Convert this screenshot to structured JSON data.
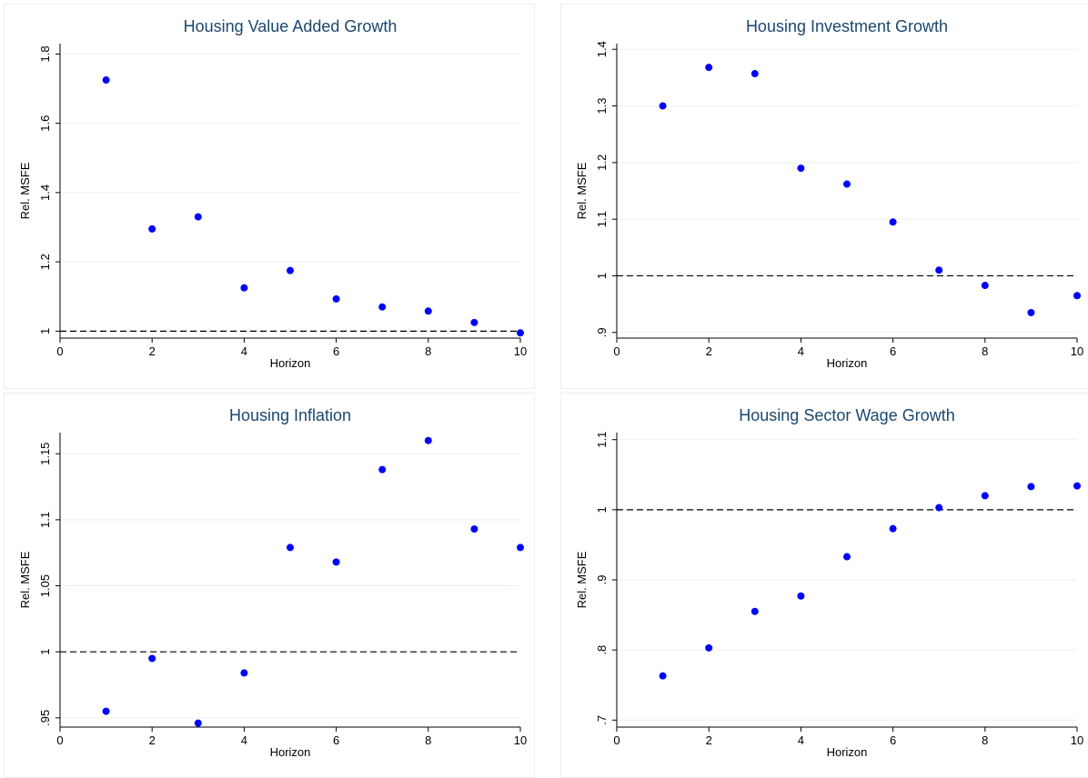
{
  "figure": {
    "background_color": "#ffffff",
    "title_color": "#1a476f",
    "marker_color": "#0000ff",
    "grid_color": "#eaf2f3"
  },
  "chart_data": [
    {
      "type": "scatter",
      "title": "Housing Value Added Growth",
      "xlabel": "Horizon",
      "ylabel": "Rel. MSFE",
      "xlim": [
        0,
        10
      ],
      "ylim": [
        0.98,
        1.83
      ],
      "xticks": [
        "0",
        "2",
        "4",
        "6",
        "8",
        "10"
      ],
      "yticks": [
        "1",
        "1.2",
        "1.4",
        "1.6",
        "1.8"
      ],
      "grid": true,
      "reference_line": 1,
      "x": [
        1,
        2,
        3,
        4,
        5,
        6,
        7,
        8,
        9,
        10
      ],
      "y": [
        1.725,
        1.295,
        1.33,
        1.125,
        1.175,
        1.093,
        1.07,
        1.058,
        1.025,
        0.995
      ]
    },
    {
      "type": "scatter",
      "title": "Housing Investment Growth",
      "xlabel": "Horizon",
      "ylabel": "Rel. MSFE",
      "xlim": [
        0,
        10
      ],
      "ylim": [
        0.89,
        1.41
      ],
      "xticks": [
        "0",
        "2",
        "4",
        "6",
        "8",
        "10"
      ],
      "yticks": [
        ".9",
        "1",
        "1.1",
        "1.2",
        "1.3",
        "1.4"
      ],
      "grid": true,
      "reference_line": 1,
      "x": [
        1,
        2,
        3,
        4,
        5,
        6,
        7,
        8,
        9,
        10
      ],
      "y": [
        1.3,
        1.368,
        1.357,
        1.19,
        1.162,
        1.095,
        1.01,
        0.983,
        0.935,
        0.965
      ]
    },
    {
      "type": "scatter",
      "title": "Housing Inflation",
      "xlabel": "Horizon",
      "ylabel": "Rel. MSFE",
      "xlim": [
        0,
        10
      ],
      "ylim": [
        0.943,
        1.166
      ],
      "xticks": [
        "0",
        "2",
        "4",
        "6",
        "8",
        "10"
      ],
      "yticks": [
        ".95",
        "1",
        "1.05",
        "1.1",
        "1.15"
      ],
      "grid": true,
      "reference_line": 1,
      "x": [
        1,
        2,
        3,
        4,
        5,
        6,
        7,
        8,
        9,
        10
      ],
      "y": [
        0.955,
        0.995,
        0.946,
        0.984,
        1.079,
        1.068,
        1.138,
        1.16,
        1.093,
        1.079
      ]
    },
    {
      "type": "scatter",
      "title": "Housing Sector Wage Growth",
      "xlabel": "Horizon",
      "ylabel": "Rel. MSFE",
      "xlim": [
        0,
        10
      ],
      "ylim": [
        0.69,
        1.11
      ],
      "xticks": [
        "0",
        "2",
        "4",
        "6",
        "8",
        "10"
      ],
      "yticks": [
        ".7",
        ".8",
        ".9",
        "1",
        "1.1"
      ],
      "grid": true,
      "reference_line": 1,
      "x": [
        1,
        2,
        3,
        4,
        5,
        6,
        7,
        8,
        9,
        10
      ],
      "y": [
        0.763,
        0.803,
        0.855,
        0.877,
        0.933,
        0.973,
        1.003,
        1.02,
        1.033,
        1.034
      ]
    }
  ]
}
